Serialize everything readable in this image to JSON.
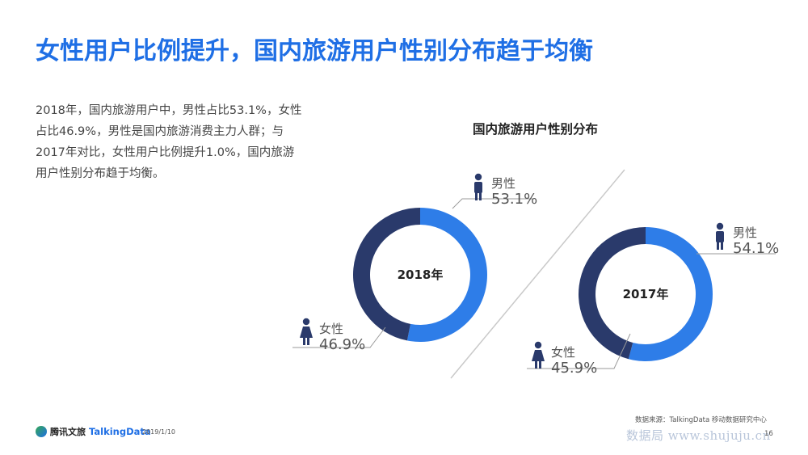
{
  "title": "女性用户比例提升，国内旅游用户性别分布趋于均衡",
  "description": "2018年，国内旅游用户中，男性占比53.1%，女性占比46.9%，男性是国内旅游消费主力人群；与2017年对比，女性用户比例提升1.0%，国内旅游用户性别分布趋于均衡。",
  "chart_title": "国内旅游用户性别分布",
  "colors": {
    "male": "#2e7de8",
    "female": "#2a3a6b",
    "accent": "#1f6fe5"
  },
  "chart_data": [
    {
      "type": "pie",
      "title": "2018年",
      "categories": [
        "男性",
        "女性"
      ],
      "values": [
        53.1,
        46.9
      ],
      "labels": [
        "53.1%",
        "46.9%"
      ]
    },
    {
      "type": "pie",
      "title": "2017年",
      "categories": [
        "男性",
        "女性"
      ],
      "values": [
        54.1,
        45.9
      ],
      "labels": [
        "54.1%",
        "45.9%"
      ]
    }
  ],
  "footer": {
    "logo_text": "腾讯文旅",
    "partner": "TalkingData",
    "date": "2019/1/10",
    "source": "数据来源：TalkingData 移动数据研究中心",
    "page": "16",
    "watermark": "数据局 www.shujuju.cn"
  }
}
